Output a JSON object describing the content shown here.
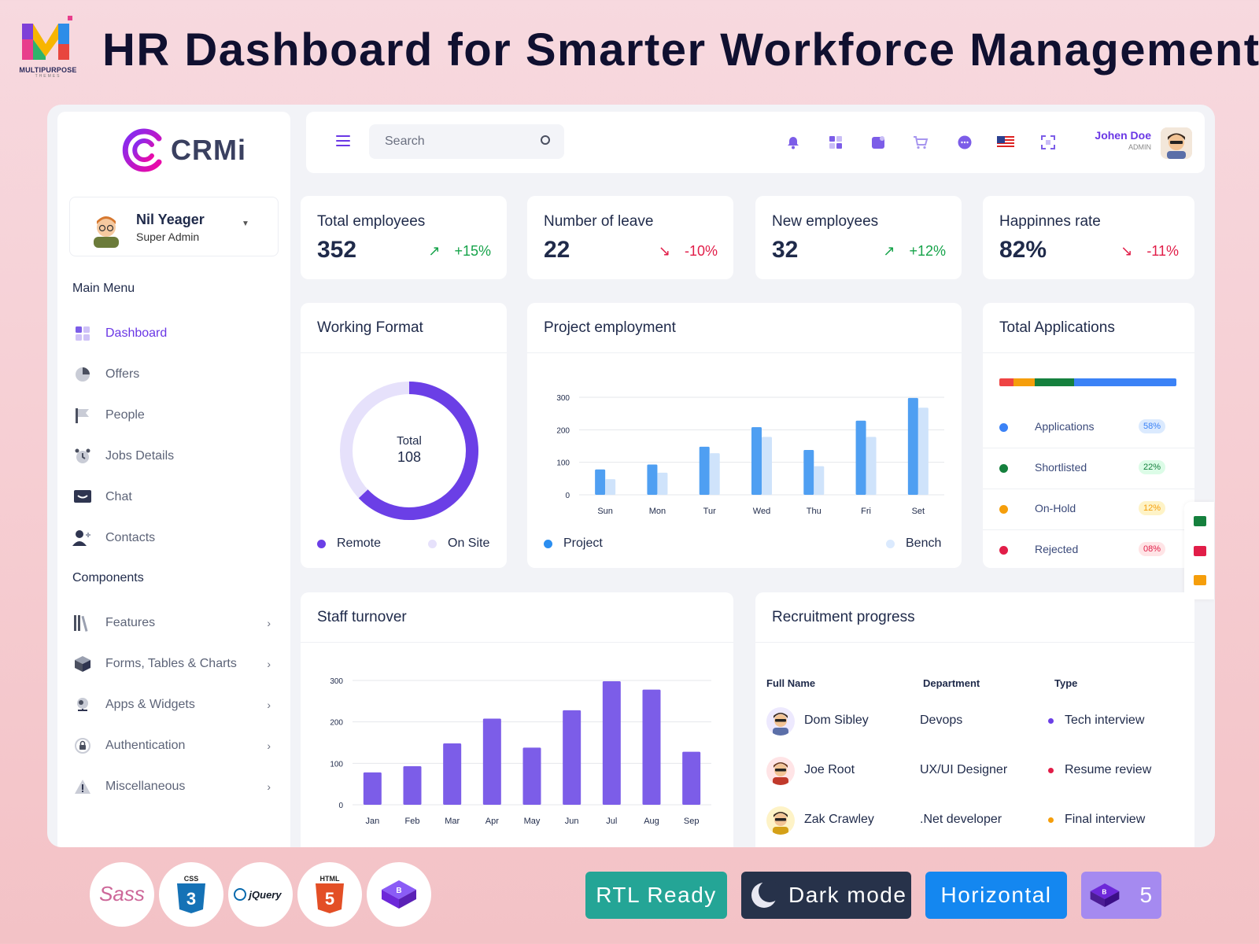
{
  "banner": {
    "logo_caption": "MULTIPURPOSE",
    "logo_subcaption": "THEMES",
    "title": "HR Dashboard for Smarter Workforce Management"
  },
  "sidebar": {
    "logo_text": "CRMi",
    "user": {
      "name": "Nil Yeager",
      "role": "Super Admin"
    },
    "main_menu_heading": "Main Menu",
    "main_items": [
      {
        "label": "Dashboard",
        "icon": "grid-icon",
        "active": true
      },
      {
        "label": "Offers",
        "icon": "pie-icon"
      },
      {
        "label": "People",
        "icon": "flag-icon"
      },
      {
        "label": "Jobs Details",
        "icon": "alarm-clock-icon"
      },
      {
        "label": "Chat",
        "icon": "chat-icon"
      },
      {
        "label": "Contacts",
        "icon": "add-user-icon"
      }
    ],
    "components_heading": "Components",
    "component_items": [
      {
        "label": "Features",
        "icon": "books-icon"
      },
      {
        "label": "Forms, Tables & Charts",
        "icon": "cube-icon"
      },
      {
        "label": "Apps & Widgets",
        "icon": "globe-icon"
      },
      {
        "label": "Authentication",
        "icon": "lock-rotate-icon"
      },
      {
        "label": "Miscellaneous",
        "icon": "warning-icon"
      }
    ]
  },
  "topbar": {
    "search_placeholder": "Search",
    "icons": [
      "bell-icon",
      "apps-icon",
      "note-icon",
      "cart-icon",
      "chat-bubble-icon",
      "us-flag-icon",
      "fullscreen-icon"
    ],
    "user_name": "Johen Doe",
    "user_role": "ADMIN"
  },
  "stats": [
    {
      "label": "Total employees",
      "value": "352",
      "delta": "+15%",
      "trend": "up"
    },
    {
      "label": "Number of leave",
      "value": "22",
      "delta": "-10%",
      "trend": "down"
    },
    {
      "label": "New employees",
      "value": "32",
      "delta": "+12%",
      "trend": "up"
    },
    {
      "label": "Happinnes rate",
      "value": "82%",
      "delta": "-11%",
      "trend": "down"
    }
  ],
  "working_format": {
    "title": "Working Format",
    "center_label": "Total",
    "center_value": "108",
    "legend": [
      "Remote",
      "On Site"
    ],
    "remote_fraction": 0.63,
    "colors": {
      "remote": "#6b3fe6",
      "onsite": "#e6e1fb"
    }
  },
  "project_employment": {
    "title": "Project employment",
    "legend": [
      "Project",
      "Bench"
    ]
  },
  "total_applications": {
    "title": "Total Applications",
    "segments": [
      {
        "color": "#ef4444",
        "share": 0.08
      },
      {
        "color": "#f59e0b",
        "share": 0.12
      },
      {
        "color": "#15803d",
        "share": 0.22
      },
      {
        "color": "#3b82f6",
        "share": 0.58
      }
    ],
    "rows": [
      {
        "label": "Applications",
        "pct": "58%",
        "color": "#3b82f6",
        "bg": "#dbeafe"
      },
      {
        "label": "Shortlisted",
        "pct": "22%",
        "color": "#15803d",
        "bg": "#dcfce7"
      },
      {
        "label": "On-Hold",
        "pct": "12%",
        "color": "#f59e0b",
        "bg": "#fef3c7"
      },
      {
        "label": "Rejected",
        "pct": "08%",
        "color": "#e11d48",
        "bg": "#ffe4e6"
      }
    ]
  },
  "staff_turnover": {
    "title": "Staff turnover"
  },
  "recruitment": {
    "title": "Recruitment progress",
    "headers": [
      "Full Name",
      "Department",
      "Type"
    ],
    "rows": [
      {
        "name": "Dom Sibley",
        "department": "Devops",
        "type": "Tech interview",
        "dot": "#6b3fe6",
        "bg": "#ede9fe"
      },
      {
        "name": "Joe Root",
        "department": "UX/UI Designer",
        "type": "Resume review",
        "dot": "#e11d48",
        "bg": "#ffe4e6"
      },
      {
        "name": "Zak Crawley",
        "department": ".Net developer",
        "type": "Final interview",
        "dot": "#f59e0b",
        "bg": "#fef3c7"
      }
    ]
  },
  "footer": {
    "tech": [
      "sass-icon",
      "css3-icon",
      "jquery-icon",
      "html5-icon",
      "bootstrap-icon"
    ],
    "tech_labels": {
      "sass": "Sass",
      "css": "CSS",
      "jquery": "jQuery",
      "html": "HTML"
    },
    "pills": [
      {
        "label": "RTL Ready",
        "color": "#24a596"
      },
      {
        "label": "Dark mode",
        "color": "#27324a"
      },
      {
        "label": "Horizontal",
        "color": "#1487f0"
      },
      {
        "label": "5",
        "color": "#a58af0"
      }
    ]
  },
  "chart_data": [
    {
      "type": "bar",
      "title": "Project employment",
      "categories": [
        "Sun",
        "Mon",
        "Tur",
        "Wed",
        "Thu",
        "Fri",
        "Set"
      ],
      "series": [
        {
          "name": "Project",
          "values": [
            78,
            93,
            148,
            208,
            138,
            228,
            298
          ],
          "color": "#4f9ff2"
        },
        {
          "name": "Bench",
          "values": [
            48,
            68,
            128,
            178,
            88,
            178,
            268
          ],
          "color": "#cfe3fb"
        }
      ],
      "yticks": [
        0,
        100,
        200,
        300
      ],
      "ylim": [
        0,
        300
      ],
      "grid": true,
      "legend": "bottom"
    },
    {
      "type": "bar",
      "title": "Staff turnover",
      "categories": [
        "Jan",
        "Feb",
        "Mar",
        "Apr",
        "May",
        "Jun",
        "Jul",
        "Aug",
        "Sep"
      ],
      "series": [
        {
          "values": [
            78,
            93,
            148,
            208,
            138,
            228,
            298,
            278,
            128
          ],
          "color": "#7c5de8"
        }
      ],
      "yticks": [
        0,
        100,
        200,
        300
      ],
      "ylim": [
        0,
        300
      ],
      "grid": true
    }
  ]
}
